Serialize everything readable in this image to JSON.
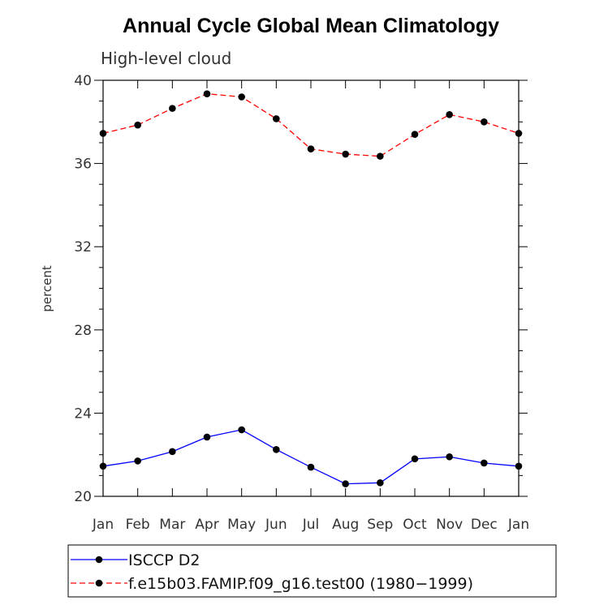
{
  "chart_data": {
    "type": "line",
    "title": "Annual Cycle Global Mean Climatology",
    "subtitle": "High-level cloud",
    "xlabel": "",
    "ylabel": "percent",
    "categories": [
      "Jan",
      "Feb",
      "Mar",
      "Apr",
      "May",
      "Jun",
      "Jul",
      "Aug",
      "Sep",
      "Oct",
      "Nov",
      "Dec",
      "Jan"
    ],
    "ylim": [
      20,
      40
    ],
    "yticks": [
      20,
      24,
      28,
      32,
      36,
      40
    ],
    "yminor_step": 1,
    "grid": false,
    "legend_position": "bottom",
    "series": [
      {
        "name": "ISCCP D2",
        "color": "#0000ff",
        "style": "solid",
        "marker": "filled-circle",
        "values": [
          21.45,
          21.7,
          22.15,
          22.85,
          23.2,
          22.25,
          21.4,
          20.6,
          20.65,
          21.8,
          21.9,
          21.6,
          21.45
        ]
      },
      {
        "name": "f.e15b03.FAMIP.f09_g16.test00 (1980−1999)",
        "color": "#ff0000",
        "style": "dashed",
        "marker": "filled-circle",
        "values": [
          37.45,
          37.85,
          38.65,
          39.35,
          39.2,
          38.15,
          36.7,
          36.45,
          36.35,
          37.4,
          38.35,
          38.0,
          37.45
        ]
      }
    ]
  }
}
